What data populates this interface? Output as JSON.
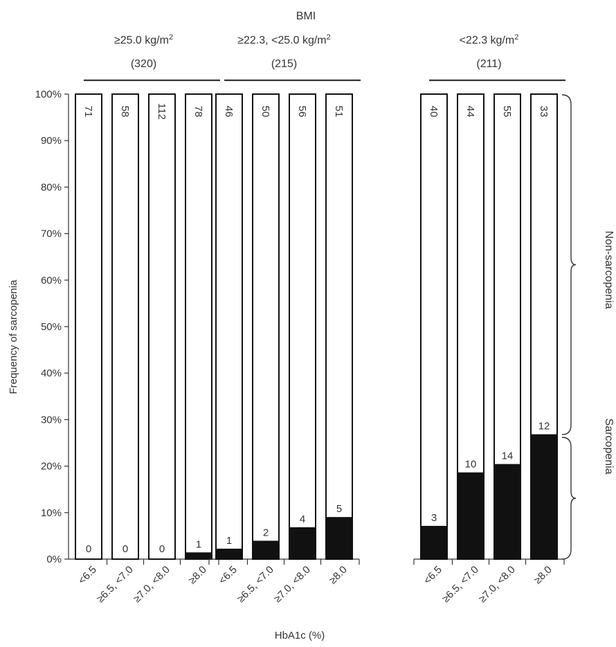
{
  "chart_data": {
    "type": "bar",
    "stacked": true,
    "title": "BMI",
    "xlabel": "HbA1c (%)",
    "ylabel": "Frequency of sarcopenia",
    "ylim": [
      0,
      100
    ],
    "y_ticks": [
      "0%",
      "10%",
      "20%",
      "30%",
      "40%",
      "50%",
      "60%",
      "70%",
      "80%",
      "90%",
      "100%"
    ],
    "categories": [
      "<6.5",
      "≥6.5, <7.0",
      "≥7.0, <8.0",
      "≥8.0"
    ],
    "groups": [
      {
        "label": "≥25.0 kg/m",
        "label_sup": "2",
        "n": "(320)",
        "sarcopenia_pct": [
          0,
          0,
          0,
          1.3
        ],
        "sarcopenia_n": [
          "0",
          "0",
          "0",
          "1"
        ],
        "non_sarcopenia_n": [
          "71",
          "58",
          "112",
          "78"
        ]
      },
      {
        "label": "≥22.3, <25.0  kg/m",
        "label_sup": "2",
        "n": "(215)",
        "sarcopenia_pct": [
          2.1,
          3.8,
          6.7,
          8.9
        ],
        "sarcopenia_n": [
          "1",
          "2",
          "4",
          "5"
        ],
        "non_sarcopenia_n": [
          "46",
          "50",
          "56",
          "51"
        ]
      },
      {
        "label": "<22.3 kg/m",
        "label_sup": "2",
        "n": "(211)",
        "sarcopenia_pct": [
          7.0,
          18.5,
          20.3,
          26.7
        ],
        "sarcopenia_n": [
          "3",
          "10",
          "14",
          "12"
        ],
        "non_sarcopenia_n": [
          "40",
          "44",
          "55",
          "33"
        ]
      }
    ],
    "series": [
      {
        "name": "Sarcopenia",
        "color": "#111111"
      },
      {
        "name": "Non-sarcopenia",
        "color": "#ffffff"
      }
    ],
    "brace_labels": {
      "non_sarcopenia": "Non-sarcopenia",
      "sarcopenia": "Sarcopenia"
    },
    "grid": false,
    "legend": "none"
  }
}
